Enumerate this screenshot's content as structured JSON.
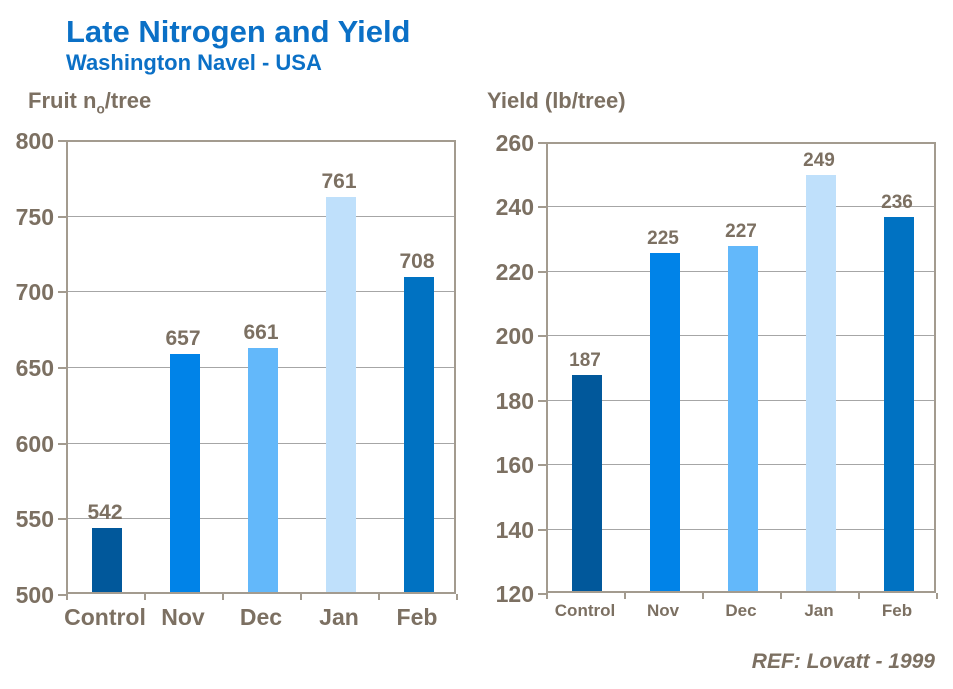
{
  "header": {
    "title": "Late Nitrogen and Yield",
    "subtitle": "Washington Navel - USA",
    "title_color": "#0B70C6"
  },
  "footer": {
    "ref": "REF: Lovatt - 1999"
  },
  "palette": {
    "label_text": "#7C7062",
    "plot_border": "#A39B8F",
    "gridline": "#A6A6A6"
  },
  "chart_data": [
    {
      "type": "bar",
      "title_parts": [
        {
          "text": "Fruit n"
        },
        {
          "text": "o",
          "sub": true
        },
        {
          "text": "/tree"
        }
      ],
      "title_plain": "Fruit no/tree",
      "categories": [
        "Control",
        "Nov",
        "Dec",
        "Jan",
        "Feb"
      ],
      "values": [
        542,
        657,
        661,
        761,
        708
      ],
      "bar_colors": [
        "#01589B",
        "#0083E8",
        "#63B8FA",
        "#BFE0FB",
        "#0072C2"
      ],
      "ylim": [
        500,
        800
      ],
      "ytick_step": 50,
      "grid": true,
      "legend": false,
      "xlabel": "",
      "ylabel": "Fruit no/tree"
    },
    {
      "type": "bar",
      "title_parts": [
        {
          "text": "Yield (lb/tree)"
        }
      ],
      "title_plain": "Yield (lb/tree)",
      "categories": [
        "Control",
        "Nov",
        "Dec",
        "Jan",
        "Feb"
      ],
      "values": [
        187,
        225,
        227,
        249,
        236
      ],
      "bar_colors": [
        "#01589B",
        "#0083E8",
        "#63B8FA",
        "#BFE0FB",
        "#0072C2"
      ],
      "ylim": [
        120,
        260
      ],
      "ytick_step": 20,
      "grid": true,
      "legend": false,
      "xlabel": "",
      "ylabel": "Yield (lb/tree)"
    }
  ]
}
